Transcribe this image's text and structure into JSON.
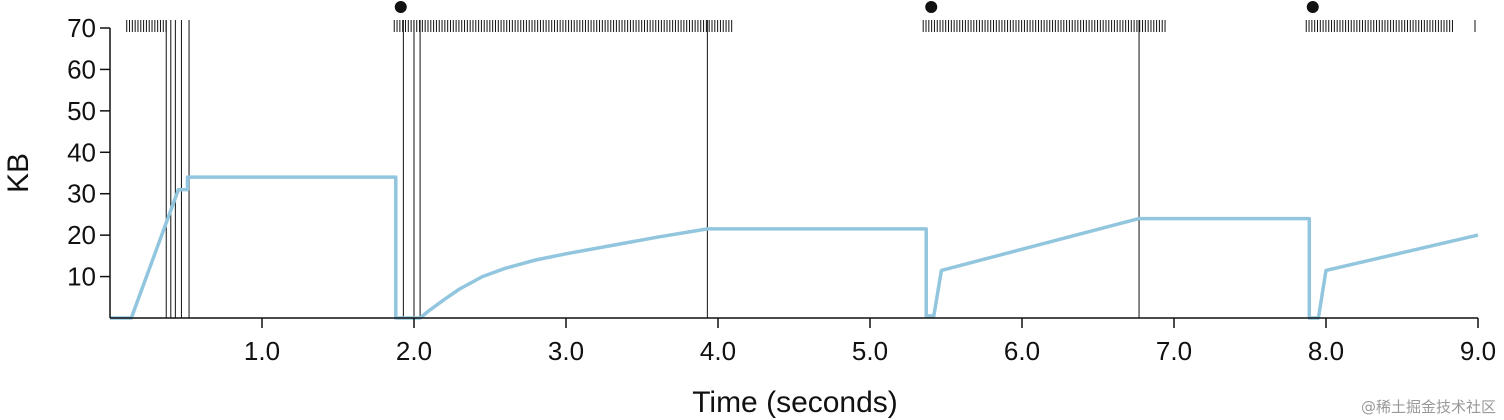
{
  "chart_data": {
    "type": "line",
    "title": "",
    "xlabel": "Time (seconds)",
    "ylabel": "KB",
    "xlim": [
      0,
      9.0
    ],
    "ylim": [
      0,
      70
    ],
    "x_ticks": [
      1.0,
      2.0,
      3.0,
      4.0,
      5.0,
      6.0,
      7.0,
      8.0,
      9.0
    ],
    "x_tick_labels": [
      "1.0",
      "2.0",
      "3.0",
      "4.0",
      "5.0",
      "6.0",
      "7.0",
      "8.0",
      "9.0"
    ],
    "y_ticks": [
      10,
      20,
      30,
      40,
      50,
      60,
      70
    ],
    "y_tick_labels": [
      "10",
      "20",
      "30",
      "40",
      "50",
      "60",
      "70"
    ],
    "grid": false,
    "line_color": "#92c6df",
    "series": [
      {
        "x": [
          0.0,
          0.14,
          0.45,
          0.51,
          0.51,
          1.88,
          1.88,
          2.04,
          2.1,
          2.2,
          2.3,
          2.45,
          2.6,
          2.8,
          3.0,
          3.3,
          3.6,
          3.93,
          5.37,
          5.37,
          5.42,
          5.47,
          6.77,
          7.89,
          7.89,
          7.95,
          8.0,
          9.0
        ],
        "y": [
          0,
          0,
          31,
          31,
          34,
          34,
          0,
          0,
          1.8,
          4.5,
          7,
          10,
          12,
          14,
          15.5,
          17.5,
          19.5,
          21.5,
          21.5,
          0.5,
          0.5,
          11.5,
          24,
          24,
          0,
          0,
          11.5,
          20
        ]
      }
    ],
    "vertical_lines": [
      0.37,
      0.4,
      0.43,
      0.47,
      0.52,
      1.93,
      2.0,
      2.04,
      3.93,
      6.77
    ],
    "dense_tick_ranges": [
      [
        0.11,
        0.37
      ],
      [
        1.87,
        4.1
      ],
      [
        5.35,
        6.95
      ],
      [
        7.87,
        8.85
      ]
    ],
    "isolated_top_ticks": [
      9.0
    ],
    "top_dots": [
      1.88,
      5.37,
      7.88
    ]
  },
  "watermark": "@稀土掘金技术社区"
}
